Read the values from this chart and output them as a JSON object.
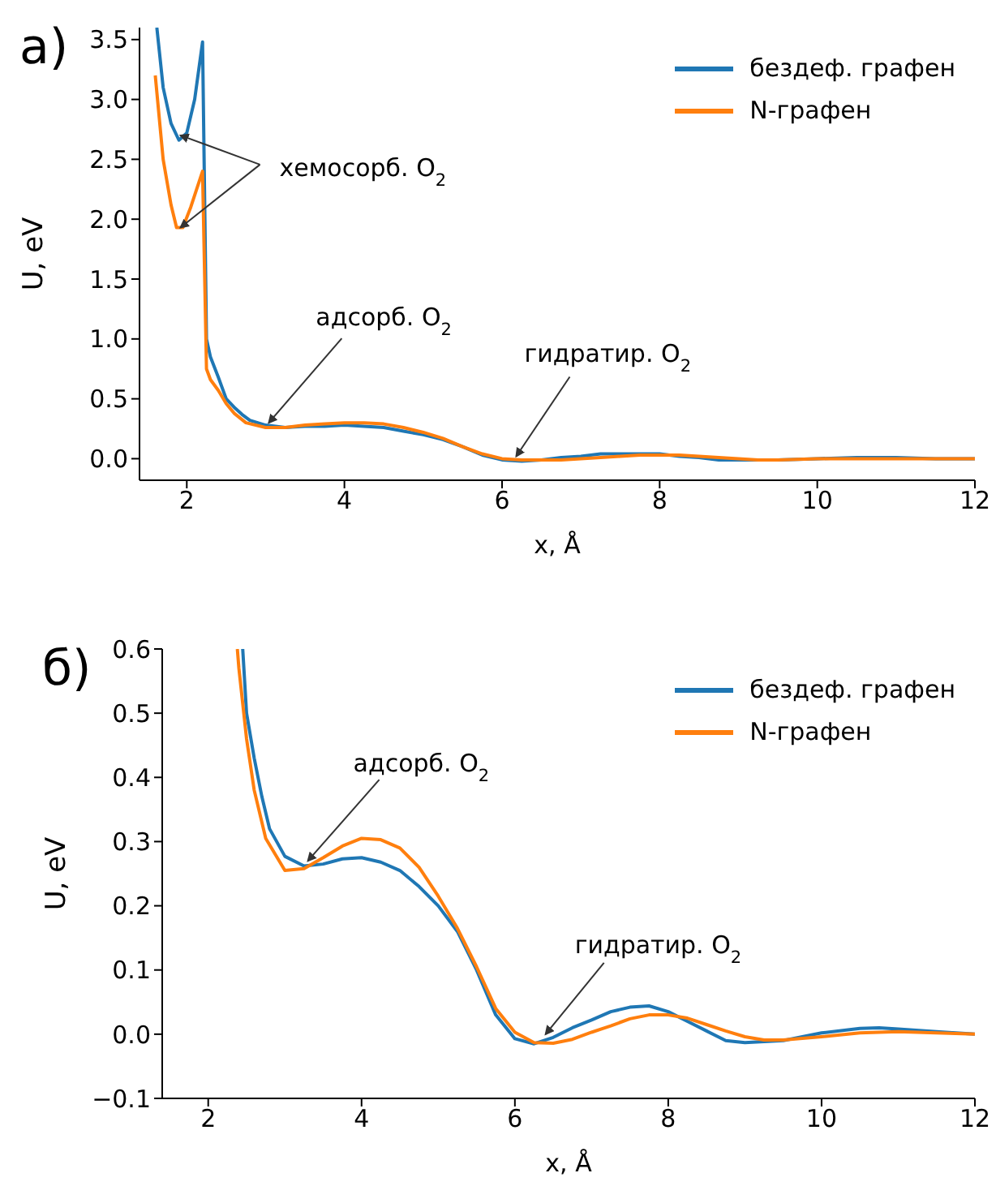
{
  "chart_data": [
    {
      "type": "line",
      "title": "а)",
      "xlabel": "x, Å",
      "ylabel": "U, eV",
      "xlim": [
        1.4,
        12
      ],
      "ylim": [
        -0.18,
        3.6
      ],
      "xticks": [
        2,
        4,
        6,
        8,
        10,
        12
      ],
      "yticks": [
        {
          "value": 0,
          "label": "0.0"
        },
        {
          "value": 0.5,
          "label": "0.5"
        },
        {
          "value": 1,
          "label": "1.0"
        },
        {
          "value": 1.5,
          "label": "1.5"
        },
        {
          "value": 2,
          "label": "2.0"
        },
        {
          "value": 2.5,
          "label": "2.5"
        },
        {
          "value": 3,
          "label": "3.0"
        },
        {
          "value": 3.5,
          "label": "3.5"
        }
      ],
      "legend": "top right",
      "series": [
        {
          "name": "бездеф. графен",
          "color": "#1f77b4",
          "x": [
            1.62,
            1.7,
            1.8,
            1.9,
            2.0,
            2.1,
            2.2,
            2.25,
            2.3,
            2.4,
            2.5,
            2.6,
            2.7,
            2.8,
            3.0,
            3.25,
            3.5,
            3.75,
            4.0,
            4.25,
            4.5,
            4.75,
            5.0,
            5.25,
            5.5,
            5.75,
            6.0,
            6.25,
            6.5,
            6.75,
            7.0,
            7.25,
            7.5,
            7.75,
            8.0,
            8.25,
            8.5,
            8.75,
            9.0,
            9.5,
            10.0,
            10.5,
            10.75,
            11.0,
            11.5,
            12.0
          ],
          "values": [
            3.6,
            3.1,
            2.8,
            2.66,
            2.72,
            3.0,
            3.48,
            1.0,
            0.85,
            0.68,
            0.5,
            0.43,
            0.37,
            0.32,
            0.28,
            0.26,
            0.27,
            0.27,
            0.28,
            0.27,
            0.26,
            0.23,
            0.2,
            0.16,
            0.1,
            0.03,
            -0.01,
            -0.02,
            -0.01,
            0.01,
            0.02,
            0.04,
            0.04,
            0.04,
            0.04,
            0.02,
            0.01,
            -0.01,
            -0.01,
            -0.01,
            0,
            0.01,
            0.01,
            0.01,
            0,
            0
          ]
        },
        {
          "name": "N-графен",
          "color": "#ff7f0e",
          "x": [
            1.6,
            1.7,
            1.8,
            1.87,
            1.95,
            2.05,
            2.2,
            2.25,
            2.3,
            2.4,
            2.5,
            2.6,
            2.75,
            3.0,
            3.25,
            3.5,
            3.75,
            4.0,
            4.25,
            4.5,
            4.75,
            5.0,
            5.25,
            5.5,
            5.75,
            6.0,
            6.25,
            6.5,
            6.75,
            7.0,
            7.25,
            7.5,
            7.75,
            8.0,
            8.25,
            8.5,
            8.75,
            9.0,
            9.25,
            9.5,
            10.0,
            10.5,
            11.0,
            12.0
          ],
          "values": [
            3.2,
            2.5,
            2.12,
            1.93,
            1.93,
            2.1,
            2.4,
            0.75,
            0.66,
            0.57,
            0.46,
            0.38,
            0.3,
            0.26,
            0.26,
            0.28,
            0.29,
            0.3,
            0.3,
            0.29,
            0.26,
            0.22,
            0.17,
            0.1,
            0.04,
            0,
            -0.01,
            -0.01,
            -0.01,
            0,
            0.01,
            0.02,
            0.03,
            0.03,
            0.03,
            0.02,
            0.01,
            0,
            -0.01,
            -0.01,
            0,
            0,
            0,
            0
          ]
        }
      ],
      "annotations": [
        {
          "text": "хемосорб. O$_{2}$",
          "x": 1.92,
          "y": 2.7
        },
        {
          "text": "адсорб. O$_{2}$",
          "x": 3.04,
          "y": 0.3
        },
        {
          "text": "гидратир. O$_{2}$",
          "x": 6.18,
          "y": 0.02
        }
      ]
    },
    {
      "type": "line",
      "title": "б)",
      "xlabel": "x, Å",
      "ylabel": "U, eV",
      "xlim": [
        1.4,
        12
      ],
      "ylim": [
        -0.1,
        0.6
      ],
      "xticks": [
        2,
        4,
        6,
        8,
        10,
        12
      ],
      "yticks": [
        {
          "value": -0.1,
          "label": "−0.1"
        },
        {
          "value": 0,
          "label": "0.0"
        },
        {
          "value": 0.1,
          "label": "0.1"
        },
        {
          "value": 0.2,
          "label": "0.2"
        },
        {
          "value": 0.3,
          "label": "0.3"
        },
        {
          "value": 0.4,
          "label": "0.4"
        },
        {
          "value": 0.5,
          "label": "0.5"
        },
        {
          "value": 0.6,
          "label": "0.6"
        }
      ],
      "legend": "top right",
      "series": [
        {
          "name": "бездеф. графен",
          "color": "#1f77b4",
          "x": [
            2.45,
            2.5,
            2.6,
            2.7,
            2.8,
            3.0,
            3.25,
            3.5,
            3.75,
            4.0,
            4.25,
            4.5,
            4.75,
            5.0,
            5.25,
            5.5,
            5.75,
            6.0,
            6.25,
            6.5,
            6.75,
            7.0,
            7.25,
            7.5,
            7.75,
            8.0,
            8.25,
            8.5,
            8.75,
            9.0,
            9.5,
            10.0,
            10.5,
            10.75,
            11.0,
            11.5,
            12.0
          ],
          "values": [
            0.6,
            0.5,
            0.43,
            0.37,
            0.32,
            0.277,
            0.262,
            0.265,
            0.273,
            0.275,
            0.268,
            0.255,
            0.23,
            0.2,
            0.16,
            0.1,
            0.03,
            -0.007,
            -0.015,
            -0.005,
            0.01,
            0.022,
            0.035,
            0.042,
            0.044,
            0.035,
            0.02,
            0.005,
            -0.01,
            -0.013,
            -0.01,
            0.002,
            0.009,
            0.01,
            0.008,
            0.004,
            0
          ]
        },
        {
          "name": "N-графен",
          "color": "#ff7f0e",
          "x": [
            2.38,
            2.4,
            2.5,
            2.6,
            2.75,
            3.0,
            3.25,
            3.5,
            3.75,
            4.0,
            4.25,
            4.5,
            4.75,
            5.0,
            5.25,
            5.5,
            5.75,
            6.0,
            6.25,
            6.5,
            6.75,
            7.0,
            7.25,
            7.5,
            7.75,
            8.0,
            8.25,
            8.5,
            8.75,
            9.0,
            9.25,
            9.5,
            10.0,
            10.5,
            11.0,
            12.0
          ],
          "values": [
            0.6,
            0.57,
            0.46,
            0.38,
            0.305,
            0.255,
            0.258,
            0.275,
            0.293,
            0.305,
            0.303,
            0.29,
            0.26,
            0.215,
            0.165,
            0.105,
            0.04,
            0.003,
            -0.013,
            -0.014,
            -0.008,
            0.003,
            0.013,
            0.024,
            0.03,
            0.03,
            0.025,
            0.015,
            0.005,
            -0.004,
            -0.009,
            -0.009,
            -0.004,
            0.002,
            0.004,
            0
          ]
        }
      ],
      "annotations": [
        {
          "text": "адсорб. O$_{2}$",
          "x": 3.3,
          "y": 0.27
        },
        {
          "text": "гидратир. O$_{2}$",
          "x": 6.4,
          "y": 0.0
        }
      ]
    }
  ]
}
